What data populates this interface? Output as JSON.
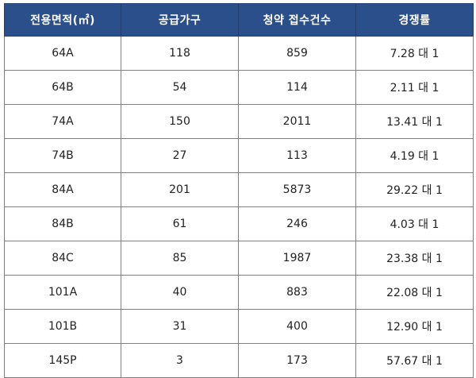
{
  "table": {
    "headers": [
      "전용면적(㎡)",
      "공급가구",
      "청약 접수건수",
      "경쟁률"
    ],
    "rows": [
      [
        "64A",
        "118",
        "859",
        "7.28 대 1"
      ],
      [
        "64B",
        "54",
        "114",
        "2.11 대 1"
      ],
      [
        "74A",
        "150",
        "2011",
        "13.41 대 1"
      ],
      [
        "74B",
        "27",
        "113",
        "4.19 대 1"
      ],
      [
        "84A",
        "201",
        "5873",
        "29.22 대 1"
      ],
      [
        "84B",
        "61",
        "246",
        "4.03 대 1"
      ],
      [
        "84C",
        "85",
        "1987",
        "23.38 대 1"
      ],
      [
        "101A",
        "40",
        "883",
        "22.08 대 1"
      ],
      [
        "101B",
        "31",
        "400",
        "12.90 대 1"
      ],
      [
        "145P",
        "3",
        "173",
        "57.67 대 1"
      ]
    ]
  },
  "colors": {
    "header_bg": "#2b4f8a",
    "header_text": "#ffffff",
    "border": "#7f7f7f"
  }
}
